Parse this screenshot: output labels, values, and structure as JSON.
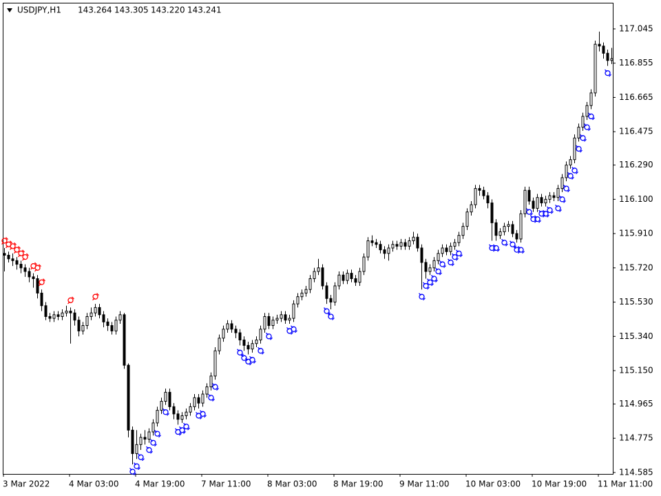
{
  "chart_data": {
    "type": "candlestick",
    "title": "USDJPY,H1",
    "header_values": [
      "143.264",
      "143.305",
      "143.220",
      "143.241"
    ],
    "categories": [
      "3 Mar 2022",
      null,
      null,
      null,
      null,
      null,
      null,
      null,
      null,
      null,
      null,
      null,
      null,
      null,
      null,
      null,
      "4 Mar 03:00",
      null,
      null,
      null,
      null,
      null,
      null,
      null,
      null,
      null,
      null,
      null,
      null,
      null,
      null,
      null,
      "4 Mar 19:00",
      null,
      null,
      null,
      null,
      null,
      null,
      null,
      null,
      null,
      null,
      null,
      null,
      null,
      null,
      null,
      "7 Mar 11:00",
      null,
      null,
      null,
      null,
      null,
      null,
      null,
      null,
      null,
      null,
      null,
      null,
      null,
      null,
      null,
      "8 Mar 03:00",
      null,
      null,
      null,
      null,
      null,
      null,
      null,
      null,
      null,
      null,
      null,
      null,
      null,
      null,
      null,
      "8 Mar 19:00",
      null,
      null,
      null,
      null,
      null,
      null,
      null,
      null,
      null,
      null,
      null,
      null,
      null,
      null,
      null,
      "9 Mar 11:00",
      null,
      null,
      null,
      null,
      null,
      null,
      null,
      null,
      null,
      null,
      null,
      null,
      null,
      null,
      null,
      "10 Mar 03:00",
      null,
      null,
      null,
      null,
      null,
      null,
      null,
      null,
      null,
      null,
      null,
      null,
      null,
      null,
      null,
      "10 Mar 19:00",
      null,
      null,
      null,
      null,
      null,
      null,
      null,
      null,
      null,
      null,
      null,
      null,
      null,
      null,
      null,
      "11 Mar 11:00",
      null,
      null,
      null
    ],
    "open": [
      115.8,
      115.79,
      115.77,
      115.76,
      115.74,
      115.72,
      115.7,
      115.67,
      115.66,
      115.58,
      115.51,
      115.45,
      115.44,
      115.46,
      115.45,
      115.47,
      115.48,
      115.47,
      115.43,
      115.37,
      115.4,
      115.45,
      115.47,
      115.5,
      115.46,
      115.42,
      115.4,
      115.37,
      115.43,
      115.46,
      115.18,
      114.82,
      114.69,
      114.74,
      114.78,
      114.77,
      114.81,
      114.86,
      114.93,
      114.98,
      115.03,
      114.95,
      114.91,
      114.88,
      114.9,
      114.92,
      114.95,
      115.0,
      114.97,
      115.02,
      115.06,
      115.12,
      115.26,
      115.33,
      115.38,
      115.41,
      115.38,
      115.36,
      115.32,
      115.29,
      115.27,
      115.3,
      115.32,
      115.38,
      115.45,
      115.4,
      115.43,
      115.44,
      115.46,
      115.43,
      115.44,
      115.52,
      115.56,
      115.58,
      115.6,
      115.66,
      115.7,
      115.72,
      115.62,
      115.55,
      115.53,
      115.62,
      115.68,
      115.65,
      115.69,
      115.66,
      115.64,
      115.7,
      115.78,
      115.87,
      115.86,
      115.85,
      115.82,
      115.8,
      115.83,
      115.85,
      115.84,
      115.86,
      115.84,
      115.87,
      115.89,
      115.83,
      115.75,
      115.7,
      115.72,
      115.76,
      115.8,
      115.83,
      115.81,
      115.84,
      115.86,
      115.9,
      115.95,
      116.03,
      116.07,
      116.16,
      116.15,
      116.12,
      116.08,
      115.97,
      115.9,
      115.92,
      115.95,
      115.96,
      115.91,
      115.88,
      116.02,
      116.15,
      116.09,
      116.05,
      116.11,
      116.08,
      116.1,
      116.12,
      116.11,
      116.16,
      116.22,
      116.29,
      116.32,
      116.44,
      116.5,
      116.56,
      116.62,
      116.69,
      116.96,
      116.95,
      116.91,
      116.87
    ],
    "high": [
      115.83,
      115.81,
      115.8,
      115.78,
      115.76,
      115.74,
      115.72,
      115.69,
      115.68,
      115.6,
      115.53,
      115.47,
      115.48,
      115.48,
      115.49,
      115.51,
      115.5,
      115.49,
      115.45,
      115.42,
      115.47,
      115.5,
      115.52,
      115.52,
      115.48,
      115.44,
      115.42,
      115.45,
      115.48,
      115.47,
      115.19,
      114.84,
      114.82,
      114.8,
      114.82,
      114.83,
      114.88,
      114.95,
      115.0,
      115.05,
      115.05,
      114.97,
      114.93,
      114.92,
      114.94,
      114.97,
      115.02,
      115.02,
      115.04,
      115.08,
      115.14,
      115.28,
      115.35,
      115.4,
      115.43,
      115.43,
      115.4,
      115.38,
      115.34,
      115.31,
      115.32,
      115.34,
      115.4,
      115.47,
      115.47,
      115.45,
      115.46,
      115.48,
      115.48,
      115.46,
      115.54,
      115.58,
      115.6,
      115.62,
      115.68,
      115.72,
      115.77,
      115.74,
      115.64,
      115.57,
      115.64,
      115.7,
      115.7,
      115.71,
      115.71,
      115.68,
      115.72,
      115.8,
      115.89,
      115.9,
      115.88,
      115.87,
      115.84,
      115.85,
      115.87,
      115.87,
      115.88,
      115.88,
      115.89,
      115.92,
      115.91,
      115.85,
      115.77,
      115.74,
      115.78,
      115.82,
      115.85,
      115.85,
      115.86,
      115.88,
      115.92,
      115.97,
      116.05,
      116.09,
      116.18,
      116.18,
      116.17,
      116.14,
      116.1,
      115.99,
      115.94,
      115.97,
      115.98,
      115.98,
      115.93,
      116.04,
      116.17,
      116.17,
      116.11,
      116.13,
      116.13,
      116.12,
      116.14,
      116.14,
      116.18,
      116.24,
      116.31,
      116.34,
      116.46,
      116.52,
      116.58,
      116.64,
      116.71,
      116.98,
      117.03,
      116.97,
      116.93,
      116.94
    ],
    "low": [
      115.7,
      115.75,
      115.73,
      115.71,
      115.69,
      115.67,
      115.64,
      115.61,
      115.55,
      115.48,
      115.43,
      115.42,
      115.42,
      115.43,
      115.43,
      115.45,
      115.3,
      115.4,
      115.34,
      115.35,
      115.38,
      115.43,
      115.45,
      115.44,
      115.39,
      115.37,
      115.35,
      115.35,
      115.41,
      115.16,
      114.78,
      114.63,
      114.66,
      114.71,
      114.74,
      114.75,
      114.79,
      114.84,
      114.91,
      114.96,
      114.93,
      114.88,
      114.85,
      114.86,
      114.88,
      114.9,
      114.93,
      114.94,
      114.95,
      115.0,
      115.04,
      115.1,
      115.24,
      115.31,
      115.36,
      115.36,
      115.33,
      115.29,
      115.26,
      115.24,
      115.25,
      115.28,
      115.3,
      115.36,
      115.38,
      115.38,
      115.41,
      115.42,
      115.41,
      115.41,
      115.42,
      115.5,
      115.54,
      115.56,
      115.58,
      115.64,
      115.68,
      115.6,
      115.52,
      115.49,
      115.51,
      115.6,
      115.63,
      115.63,
      115.64,
      115.62,
      115.62,
      115.68,
      115.76,
      115.84,
      115.83,
      115.8,
      115.77,
      115.76,
      115.81,
      115.82,
      115.82,
      115.82,
      115.82,
      115.85,
      115.81,
      115.6,
      115.66,
      115.68,
      115.7,
      115.74,
      115.78,
      115.79,
      115.79,
      115.82,
      115.84,
      115.88,
      115.93,
      116.01,
      116.05,
      116.12,
      116.1,
      116.05,
      115.87,
      115.87,
      115.88,
      115.9,
      115.92,
      115.89,
      115.86,
      115.86,
      116.0,
      116.07,
      116.03,
      116.03,
      116.06,
      116.06,
      116.08,
      116.09,
      116.09,
      116.14,
      116.2,
      116.27,
      116.3,
      116.42,
      116.48,
      116.54,
      116.6,
      116.67,
      116.92,
      116.88,
      116.84,
      116.85
    ],
    "close": [
      115.79,
      115.77,
      115.76,
      115.74,
      115.72,
      115.7,
      115.67,
      115.66,
      115.58,
      115.51,
      115.45,
      115.44,
      115.46,
      115.45,
      115.47,
      115.48,
      115.47,
      115.43,
      115.37,
      115.4,
      115.45,
      115.47,
      115.5,
      115.46,
      115.42,
      115.4,
      115.37,
      115.43,
      115.46,
      115.18,
      114.82,
      114.69,
      114.74,
      114.78,
      114.77,
      114.81,
      114.86,
      114.93,
      114.98,
      115.03,
      114.95,
      114.91,
      114.88,
      114.9,
      114.92,
      114.95,
      115.0,
      114.97,
      115.02,
      115.06,
      115.12,
      115.26,
      115.33,
      115.38,
      115.41,
      115.38,
      115.36,
      115.32,
      115.29,
      115.27,
      115.3,
      115.32,
      115.38,
      115.45,
      115.4,
      115.43,
      115.44,
      115.46,
      115.43,
      115.44,
      115.52,
      115.56,
      115.58,
      115.6,
      115.66,
      115.7,
      115.72,
      115.62,
      115.55,
      115.53,
      115.62,
      115.68,
      115.65,
      115.69,
      115.66,
      115.64,
      115.7,
      115.78,
      115.87,
      115.86,
      115.85,
      115.82,
      115.8,
      115.83,
      115.85,
      115.84,
      115.86,
      115.84,
      115.87,
      115.89,
      115.83,
      115.75,
      115.7,
      115.72,
      115.76,
      115.8,
      115.83,
      115.81,
      115.84,
      115.86,
      115.9,
      115.95,
      116.03,
      116.07,
      116.16,
      116.15,
      116.12,
      116.08,
      115.97,
      115.9,
      115.92,
      115.95,
      115.96,
      115.91,
      115.88,
      116.02,
      116.15,
      116.09,
      116.05,
      116.11,
      116.08,
      116.1,
      116.12,
      116.11,
      116.16,
      116.22,
      116.29,
      116.32,
      116.44,
      116.5,
      116.56,
      116.62,
      116.69,
      116.96,
      116.95,
      116.91,
      116.87,
      116.88
    ],
    "up_color": "#ffffff",
    "down_color": "#000000",
    "wick_color": "#000000",
    "sell_signals": {
      "color": "#ff0000",
      "points": [
        {
          "index": 0,
          "price": 115.87
        },
        {
          "index": 1,
          "price": 115.85
        },
        {
          "index": 2,
          "price": 115.84
        },
        {
          "index": 3,
          "price": 115.82
        },
        {
          "index": 4,
          "price": 115.8
        },
        {
          "index": 5,
          "price": 115.78
        },
        {
          "index": 7,
          "price": 115.73
        },
        {
          "index": 8,
          "price": 115.72
        },
        {
          "index": 9,
          "price": 115.64
        },
        {
          "index": 16,
          "price": 115.54
        },
        {
          "index": 22,
          "price": 115.56
        }
      ]
    },
    "buy_signals": {
      "color": "#0000ff",
      "points": [
        {
          "index": 31,
          "price": 114.59
        },
        {
          "index": 32,
          "price": 114.62
        },
        {
          "index": 33,
          "price": 114.67
        },
        {
          "index": 35,
          "price": 114.71
        },
        {
          "index": 36,
          "price": 114.75
        },
        {
          "index": 37,
          "price": 114.8
        },
        {
          "index": 39,
          "price": 114.92
        },
        {
          "index": 42,
          "price": 114.81
        },
        {
          "index": 43,
          "price": 114.82
        },
        {
          "index": 44,
          "price": 114.84
        },
        {
          "index": 47,
          "price": 114.9
        },
        {
          "index": 48,
          "price": 114.91
        },
        {
          "index": 50,
          "price": 115.0
        },
        {
          "index": 51,
          "price": 115.06
        },
        {
          "index": 57,
          "price": 115.25
        },
        {
          "index": 58,
          "price": 115.22
        },
        {
          "index": 59,
          "price": 115.2
        },
        {
          "index": 60,
          "price": 115.21
        },
        {
          "index": 62,
          "price": 115.26
        },
        {
          "index": 64,
          "price": 115.34
        },
        {
          "index": 69,
          "price": 115.37
        },
        {
          "index": 70,
          "price": 115.38
        },
        {
          "index": 78,
          "price": 115.48
        },
        {
          "index": 79,
          "price": 115.45
        },
        {
          "index": 101,
          "price": 115.56
        },
        {
          "index": 102,
          "price": 115.62
        },
        {
          "index": 103,
          "price": 115.64
        },
        {
          "index": 104,
          "price": 115.66
        },
        {
          "index": 105,
          "price": 115.7
        },
        {
          "index": 106,
          "price": 115.74
        },
        {
          "index": 108,
          "price": 115.75
        },
        {
          "index": 109,
          "price": 115.78
        },
        {
          "index": 110,
          "price": 115.8
        },
        {
          "index": 118,
          "price": 115.83
        },
        {
          "index": 119,
          "price": 115.83
        },
        {
          "index": 121,
          "price": 115.86
        },
        {
          "index": 123,
          "price": 115.85
        },
        {
          "index": 124,
          "price": 115.82
        },
        {
          "index": 125,
          "price": 115.82
        },
        {
          "index": 127,
          "price": 116.03
        },
        {
          "index": 128,
          "price": 115.99
        },
        {
          "index": 129,
          "price": 115.99
        },
        {
          "index": 130,
          "price": 116.02
        },
        {
          "index": 131,
          "price": 116.02
        },
        {
          "index": 132,
          "price": 116.04
        },
        {
          "index": 134,
          "price": 116.05
        },
        {
          "index": 135,
          "price": 116.1
        },
        {
          "index": 136,
          "price": 116.16
        },
        {
          "index": 137,
          "price": 116.23
        },
        {
          "index": 138,
          "price": 116.26
        },
        {
          "index": 139,
          "price": 116.38
        },
        {
          "index": 140,
          "price": 116.44
        },
        {
          "index": 141,
          "price": 116.5
        },
        {
          "index": 142,
          "price": 116.56
        },
        {
          "index": 146,
          "price": 116.8
        }
      ]
    },
    "ylim": [
      114.577,
      117.19
    ],
    "yticks": [
      117.045,
      116.855,
      116.665,
      116.475,
      {
        "value": 116.29,
        "label": "116.290"
      },
      {
        "value": 116.1,
        "label": "116.100"
      },
      {
        "value": 115.91,
        "label": "115.910"
      },
      {
        "value": 115.72,
        "label": "115.720"
      },
      {
        "value": 115.53,
        "label": "115.530"
      },
      {
        "value": 115.34,
        "label": "115.340"
      },
      {
        "value": 115.15,
        "label": "115.150"
      },
      114.965,
      114.775,
      114.585
    ],
    "grid": false
  }
}
